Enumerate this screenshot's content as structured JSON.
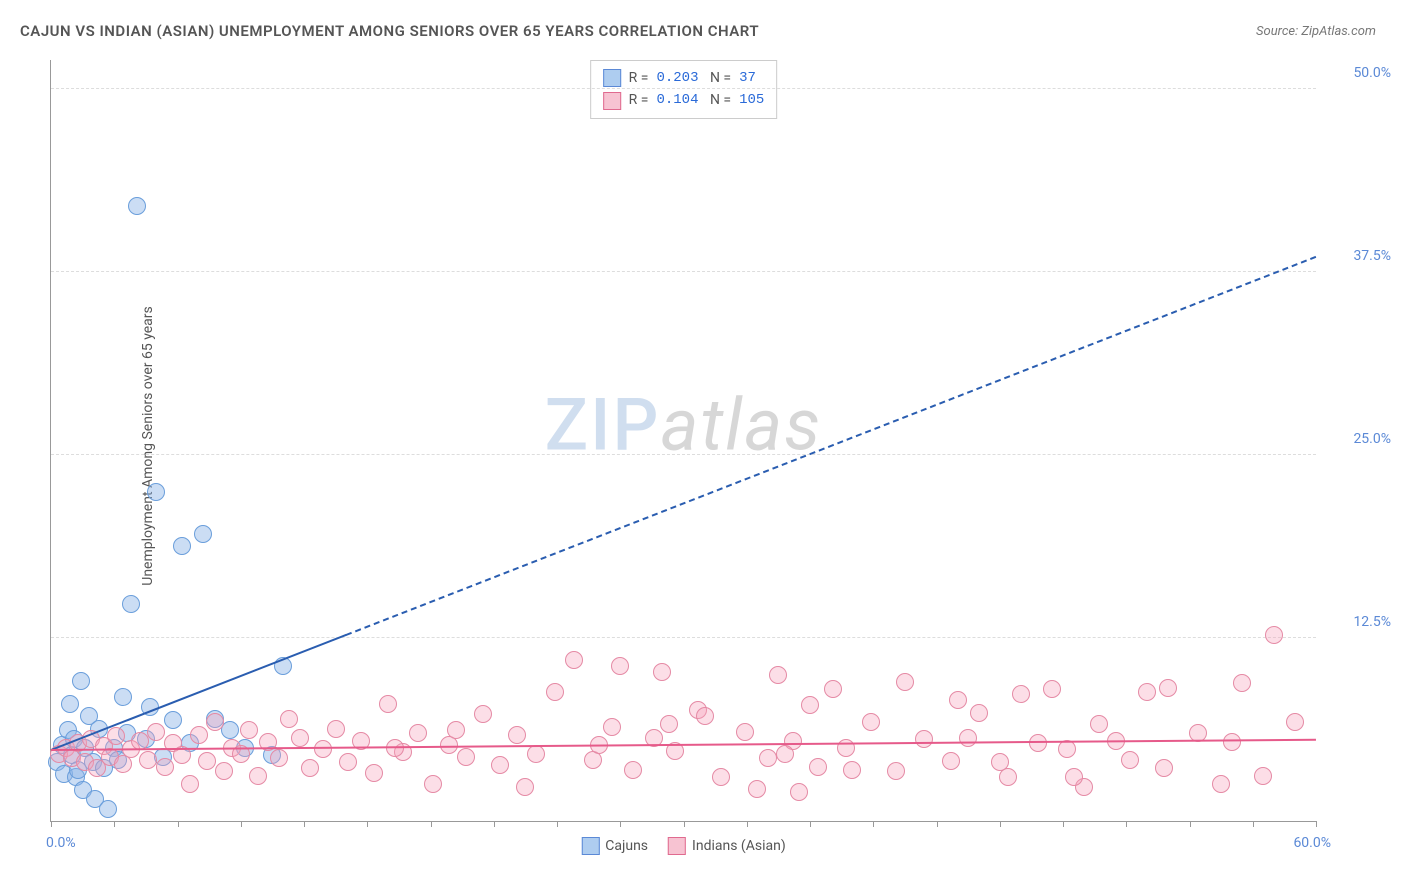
{
  "title": "CAJUN VS INDIAN (ASIAN) UNEMPLOYMENT AMONG SENIORS OVER 65 YEARS CORRELATION CHART",
  "source": "Source: ZipAtlas.com",
  "yaxis_label": "Unemployment Among Seniors over 65 years",
  "watermark": {
    "part1": "ZIP",
    "part2": "atlas"
  },
  "chart": {
    "type": "scatter",
    "background_color": "#ffffff",
    "grid_color": "#dddddd",
    "axis_color": "#999999",
    "xlim": [
      0,
      60
    ],
    "ylim": [
      0,
      52
    ],
    "yticks": [
      {
        "v": 12.5,
        "label": "12.5%"
      },
      {
        "v": 25.0,
        "label": "25.0%"
      },
      {
        "v": 37.5,
        "label": "37.5%"
      },
      {
        "v": 50.0,
        "label": "50.0%"
      }
    ],
    "xticks_minor": [
      0,
      3,
      6,
      9,
      12,
      15,
      18,
      21,
      24,
      27,
      30,
      33,
      36,
      39,
      42,
      45,
      48,
      51,
      54,
      57,
      60
    ],
    "xtick_labels": {
      "min": "0.0%",
      "max": "60.0%"
    },
    "point_radius": 9,
    "series": [
      {
        "name": "Cajuns",
        "fill": "rgba(140,180,230,0.45)",
        "stroke": "#6a9edb",
        "legend_swatch_fill": "#aecdf0",
        "legend_swatch_border": "#5b89d6",
        "R": "0.203",
        "N": "37",
        "trend": {
          "color": "#2a5db0",
          "solid_to_x": 14,
          "x1": 0,
          "y1": 4.8,
          "x2": 60,
          "y2": 38.5
        },
        "points": [
          [
            0.3,
            4.0
          ],
          [
            0.5,
            5.2
          ],
          [
            0.6,
            3.2
          ],
          [
            0.8,
            6.2
          ],
          [
            1.0,
            4.5
          ],
          [
            1.1,
            5.6
          ],
          [
            1.2,
            3.0
          ],
          [
            1.4,
            9.6
          ],
          [
            1.5,
            2.1
          ],
          [
            1.6,
            5.0
          ],
          [
            1.8,
            7.2
          ],
          [
            2.0,
            4.0
          ],
          [
            2.1,
            1.5
          ],
          [
            2.3,
            6.3
          ],
          [
            2.5,
            3.6
          ],
          [
            2.7,
            0.8
          ],
          [
            3.0,
            5.0
          ],
          [
            3.2,
            4.2
          ],
          [
            3.4,
            8.5
          ],
          [
            3.6,
            6.0
          ],
          [
            3.8,
            14.8
          ],
          [
            4.1,
            42.0
          ],
          [
            4.5,
            5.6
          ],
          [
            4.7,
            7.8
          ],
          [
            5.0,
            22.5
          ],
          [
            5.3,
            4.4
          ],
          [
            5.8,
            6.9
          ],
          [
            6.2,
            18.8
          ],
          [
            6.6,
            5.3
          ],
          [
            7.2,
            19.6
          ],
          [
            7.8,
            7.0
          ],
          [
            8.5,
            6.2
          ],
          [
            9.2,
            5.0
          ],
          [
            10.5,
            4.5
          ],
          [
            11.0,
            10.6
          ],
          [
            0.9,
            8.0
          ],
          [
            1.3,
            3.5
          ]
        ]
      },
      {
        "name": "Indians (Asian)",
        "fill": "rgba(245,160,185,0.35)",
        "stroke": "#e58aa5",
        "legend_swatch_fill": "#f7c3d2",
        "legend_swatch_border": "#e06a8f",
        "R": "0.104",
        "N": "105",
        "trend": {
          "color": "#e65a8a",
          "solid_to_x": 60,
          "x1": 0,
          "y1": 4.8,
          "x2": 60,
          "y2": 5.5
        },
        "points": [
          [
            0.4,
            4.6
          ],
          [
            0.7,
            5.0
          ],
          [
            1.0,
            4.3
          ],
          [
            1.3,
            5.3
          ],
          [
            1.6,
            4.0
          ],
          [
            1.9,
            5.6
          ],
          [
            2.2,
            3.6
          ],
          [
            2.5,
            5.1
          ],
          [
            2.8,
            4.4
          ],
          [
            3.1,
            5.8
          ],
          [
            3.4,
            3.9
          ],
          [
            3.8,
            4.9
          ],
          [
            4.2,
            5.5
          ],
          [
            4.6,
            4.2
          ],
          [
            5.0,
            6.1
          ],
          [
            5.4,
            3.7
          ],
          [
            5.8,
            5.3
          ],
          [
            6.2,
            4.5
          ],
          [
            6.6,
            2.5
          ],
          [
            7.0,
            5.9
          ],
          [
            7.4,
            4.1
          ],
          [
            7.8,
            6.8
          ],
          [
            8.2,
            3.4
          ],
          [
            8.6,
            5.0
          ],
          [
            9.0,
            4.6
          ],
          [
            9.4,
            6.2
          ],
          [
            9.8,
            3.1
          ],
          [
            10.3,
            5.4
          ],
          [
            10.8,
            4.3
          ],
          [
            11.3,
            7.0
          ],
          [
            11.8,
            5.7
          ],
          [
            12.3,
            3.6
          ],
          [
            12.9,
            4.9
          ],
          [
            13.5,
            6.3
          ],
          [
            14.1,
            4.0
          ],
          [
            14.7,
            5.5
          ],
          [
            15.3,
            3.3
          ],
          [
            16.0,
            8.0
          ],
          [
            16.7,
            4.7
          ],
          [
            17.4,
            6.0
          ],
          [
            18.1,
            2.5
          ],
          [
            18.9,
            5.2
          ],
          [
            19.7,
            4.4
          ],
          [
            20.5,
            7.3
          ],
          [
            21.3,
            3.8
          ],
          [
            22.1,
            5.9
          ],
          [
            23.0,
            4.6
          ],
          [
            23.9,
            8.8
          ],
          [
            24.8,
            11.0
          ],
          [
            25.7,
            4.2
          ],
          [
            26.6,
            6.4
          ],
          [
            27.0,
            10.6
          ],
          [
            27.6,
            3.5
          ],
          [
            28.6,
            5.7
          ],
          [
            29.0,
            10.2
          ],
          [
            29.6,
            4.8
          ],
          [
            30.7,
            7.6
          ],
          [
            31.8,
            3.0
          ],
          [
            32.9,
            6.1
          ],
          [
            33.5,
            2.2
          ],
          [
            34.0,
            4.3
          ],
          [
            34.5,
            10.0
          ],
          [
            35.2,
            5.5
          ],
          [
            35.5,
            2.0
          ],
          [
            36.0,
            7.9
          ],
          [
            36.4,
            3.7
          ],
          [
            37.1,
            9.0
          ],
          [
            37.7,
            5.0
          ],
          [
            38.9,
            6.8
          ],
          [
            40.1,
            3.4
          ],
          [
            40.5,
            9.5
          ],
          [
            41.4,
            5.6
          ],
          [
            42.7,
            4.1
          ],
          [
            43.0,
            8.3
          ],
          [
            44.0,
            7.4
          ],
          [
            45.4,
            3.0
          ],
          [
            46.0,
            8.7
          ],
          [
            46.8,
            5.3
          ],
          [
            47.5,
            9.0
          ],
          [
            48.2,
            4.9
          ],
          [
            49.0,
            2.3
          ],
          [
            49.7,
            6.6
          ],
          [
            51.2,
            4.2
          ],
          [
            52.0,
            8.8
          ],
          [
            52.8,
            3.6
          ],
          [
            53.0,
            9.1
          ],
          [
            54.4,
            6.0
          ],
          [
            55.5,
            2.5
          ],
          [
            56.0,
            5.4
          ],
          [
            56.5,
            9.4
          ],
          [
            57.5,
            3.1
          ],
          [
            58.0,
            12.7
          ],
          [
            59.0,
            6.8
          ],
          [
            48.5,
            3.0
          ],
          [
            50.5,
            5.5
          ],
          [
            34.8,
            4.6
          ],
          [
            38.0,
            3.5
          ],
          [
            16.3,
            5.0
          ],
          [
            19.2,
            6.2
          ],
          [
            22.5,
            2.3
          ],
          [
            26.0,
            5.2
          ],
          [
            29.3,
            6.6
          ],
          [
            31.0,
            7.2
          ],
          [
            43.5,
            5.7
          ],
          [
            45.0,
            4.0
          ]
        ]
      }
    ],
    "legend_bottom": [
      {
        "label": "Cajuns"
      },
      {
        "label": "Indians (Asian)"
      }
    ]
  }
}
